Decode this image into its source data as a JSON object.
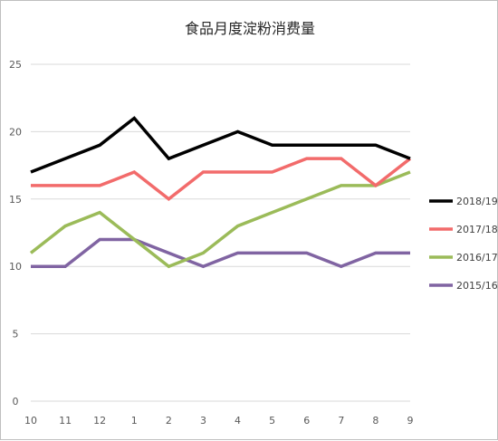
{
  "chart_data": {
    "type": "line",
    "title": "食品月度淀粉消费量",
    "xlabel": "",
    "ylabel": "",
    "categories": [
      "10",
      "11",
      "12",
      "1",
      "2",
      "3",
      "4",
      "5",
      "6",
      "7",
      "8",
      "9"
    ],
    "ylim": [
      0,
      25
    ],
    "yticks": [
      0,
      5,
      10,
      15,
      20,
      25
    ],
    "grid": true,
    "legend_position": "right",
    "series": [
      {
        "name": "2018/19",
        "color": "#000000",
        "values": [
          17,
          18,
          19,
          21,
          18,
          19,
          20,
          19,
          19,
          19,
          19,
          18
        ]
      },
      {
        "name": "2017/18",
        "color": "#f26b6b",
        "values": [
          16,
          16,
          16,
          17,
          15,
          17,
          17,
          17,
          18,
          18,
          16,
          18
        ]
      },
      {
        "name": "2016/17",
        "color": "#9bbb59",
        "values": [
          11,
          13,
          14,
          12,
          10,
          11,
          13,
          14,
          15,
          16,
          16,
          17
        ]
      },
      {
        "name": "2015/16",
        "color": "#8064a2",
        "values": [
          10,
          10,
          12,
          12,
          11,
          10,
          11,
          11,
          11,
          10,
          11,
          11
        ]
      }
    ]
  }
}
